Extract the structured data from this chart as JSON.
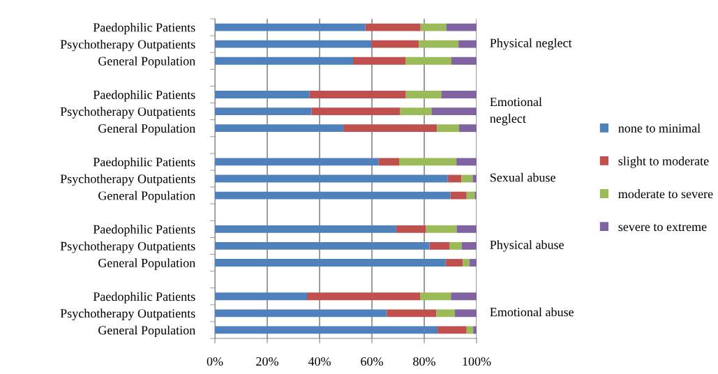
{
  "chart_data": {
    "type": "bar",
    "orientation": "horizontal",
    "stacked": true,
    "categories": [
      "Paedophilic Patients",
      "Psychotherapy Outpatients",
      "General Population",
      null,
      "Paedophilic Patients",
      "Psychotherapy Outpatients",
      "General Population",
      null,
      "Paedophilic Patients",
      "Psychotherapy Outpatients",
      "General Population",
      null,
      "Paedophilic Patients",
      "Psychotherapy Outpatients",
      "General Population",
      null,
      "Paedophilic Patients",
      "Psychotherapy Outpatients",
      "General Population"
    ],
    "series": [
      {
        "name": "none to minimal",
        "color": "#4f81bd",
        "values": [
          57.5,
          59.8,
          52.8,
          null,
          36.2,
          36.9,
          49.1,
          null,
          62.6,
          89.0,
          90.0,
          null,
          69.3,
          82.0,
          88.2,
          null,
          35.2,
          65.7,
          85.1
        ]
      },
      {
        "name": "slight to moderate",
        "color": "#c0504d",
        "values": [
          21.1,
          18.2,
          20.0,
          null,
          36.8,
          33.9,
          35.8,
          null,
          7.8,
          5.2,
          6.2,
          null,
          11.4,
          7.6,
          6.5,
          null,
          43.2,
          18.9,
          11.1
        ]
      },
      {
        "name": "moderate to severe",
        "color": "#9bbb59",
        "values": [
          9.8,
          15.1,
          17.6,
          null,
          13.5,
          12.0,
          8.4,
          null,
          21.9,
          4.3,
          3.1,
          null,
          11.7,
          4.7,
          2.6,
          null,
          11.8,
          7.1,
          2.5
        ]
      },
      {
        "name": "severe to extreme",
        "color": "#8064a2",
        "values": [
          11.6,
          6.9,
          9.6,
          null,
          13.5,
          17.2,
          6.7,
          null,
          7.7,
          1.5,
          0.7,
          null,
          7.6,
          5.7,
          2.7,
          null,
          9.8,
          8.3,
          1.3
        ]
      }
    ],
    "xlim": [
      0,
      100
    ],
    "xticks": [
      {
        "value": 0,
        "label": "0%"
      },
      {
        "value": 20,
        "label": "20%"
      },
      {
        "value": 40,
        "label": "40%"
      },
      {
        "value": 60,
        "label": "60%"
      },
      {
        "value": 80,
        "label": "80%"
      },
      {
        "value": 100,
        "label": "100%"
      }
    ],
    "annotations": [
      "Physical neglect",
      "Emotional\nneglect",
      "Sexual abuse",
      "Physical abuse",
      "Emotional abuse"
    ],
    "grid": "x",
    "legend": "right"
  }
}
